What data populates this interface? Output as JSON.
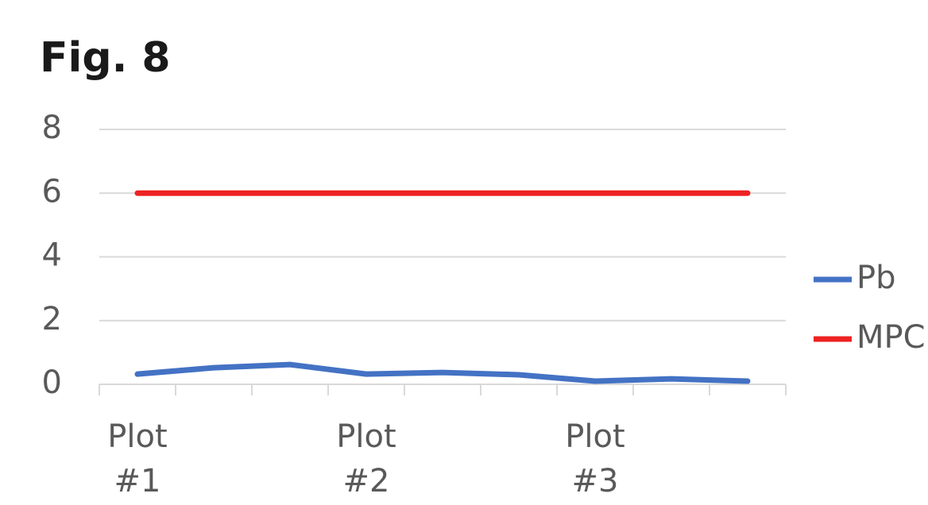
{
  "chart_data": {
    "type": "line",
    "title": "Fig. 8",
    "categories": [
      "Plot #1",
      null,
      null,
      "Plot #2",
      null,
      null,
      "Plot #3",
      null,
      null
    ],
    "series": [
      {
        "name": "Pb",
        "color": "#4472c4",
        "values": [
          0.32,
          0.52,
          0.62,
          0.32,
          0.37,
          0.3,
          0.1,
          0.17,
          0.1
        ]
      },
      {
        "name": "MPC",
        "color": "#ee2222",
        "values": [
          6,
          6,
          6,
          6,
          6,
          6,
          6,
          6,
          6
        ]
      }
    ],
    "ylim": [
      0,
      8
    ],
    "yticks": [
      0,
      2,
      4,
      6,
      8
    ],
    "grid": true,
    "legend": "right"
  }
}
